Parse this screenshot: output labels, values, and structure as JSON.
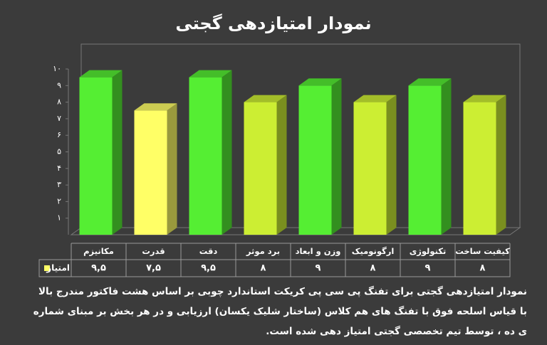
{
  "chart_data": {
    "type": "bar3d",
    "title": "نمودار امتیازدهی گجتی",
    "categories": [
      "مکانیزم",
      "قدرت",
      "دقت",
      "برد موثر",
      "وزن و ابعاد",
      "ارگونومیک",
      "تکنولوژی",
      "کیفیت ساخت"
    ],
    "series": [
      {
        "name": "امتیاز",
        "color": "#ffff66",
        "colors": [
          "#55ee33",
          "#ffff66",
          "#55ee33",
          "#ccee33",
          "#55ee33",
          "#ccee33",
          "#55ee33",
          "#ccee33"
        ],
        "values": [
          9.5,
          7.5,
          9.5,
          8,
          9,
          8,
          9,
          8
        ],
        "value_labels": [
          "۹,۵",
          "۷,۵",
          "۹,۵",
          "۸",
          "۹",
          "۸",
          "۹",
          "۸"
        ]
      }
    ],
    "ylim": [
      0,
      10
    ],
    "yticks": [
      {
        "value": 1,
        "label": "۱"
      },
      {
        "value": 2,
        "label": "۲"
      },
      {
        "value": 3,
        "label": "۳"
      },
      {
        "value": 4,
        "label": "۴"
      },
      {
        "value": 5,
        "label": "۵"
      },
      {
        "value": 6,
        "label": "۶"
      },
      {
        "value": 7,
        "label": "۷"
      },
      {
        "value": 8,
        "label": "۸"
      },
      {
        "value": 9,
        "label": "۹"
      },
      {
        "value": 10,
        "label": "۱۰"
      }
    ],
    "note_lines": [
      "نمودار امتیازدهی گجتی برای تفنگ پی سی پی کریکت استاندارد چوبی بر اساس هشت فاکتور مندرج بالا",
      "با قیاس اسلحه فوق با تفنگ های هم کلاس (ساختار شلیک یکسان) ارزیابی و در هر بخش بر مبنای شماره",
      "ی ده ، توسط تیم تخصصی گجتی امتیاز دهی شده است."
    ]
  }
}
